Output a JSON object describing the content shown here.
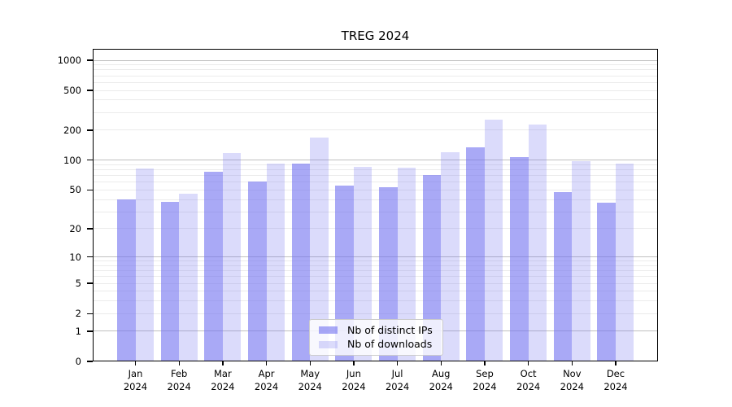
{
  "title": "TREG 2024",
  "chart_data": {
    "type": "bar",
    "title": "TREG 2024",
    "categories": [
      "Jan 2024",
      "Feb 2024",
      "Mar 2024",
      "Apr 2024",
      "May 2024",
      "Jun 2024",
      "Jul 2024",
      "Aug 2024",
      "Sep 2024",
      "Oct 2024",
      "Nov 2024",
      "Dec 2024"
    ],
    "series": [
      {
        "name": "Nb of distinct IPs",
        "color_base": "#7070f0",
        "alpha": 0.6,
        "values": [
          40,
          38,
          77,
          61,
          93,
          55,
          53,
          71,
          136,
          108,
          48,
          37
        ]
      },
      {
        "name": "Nb of downloads",
        "color_base": "#7070f0",
        "alpha": 0.25,
        "values": [
          82,
          46,
          118,
          92,
          170,
          85,
          84,
          121,
          257,
          230,
          97,
          93
        ]
      }
    ],
    "xlabel": "",
    "ylabel": "",
    "yscale": "symlog(log1p)",
    "yticks": [
      0,
      1,
      2,
      5,
      10,
      20,
      50,
      100,
      200,
      500,
      1000
    ],
    "minor_yticks": [
      2,
      3,
      4,
      5,
      6,
      7,
      8,
      9,
      20,
      30,
      40,
      50,
      60,
      70,
      80,
      90,
      200,
      300,
      400,
      500,
      600,
      700,
      800,
      900
    ],
    "ylim": [
      0,
      1300
    ],
    "grid": true,
    "legend_position": "lower center",
    "colors": {
      "bar_dark": "#a9a9f5",
      "bar_light": "#dbdbfa",
      "grid_major": "#c0c0c0",
      "grid_minor": "#ebebeb",
      "axis": "#000000",
      "legend_border": "#cccccc"
    }
  }
}
